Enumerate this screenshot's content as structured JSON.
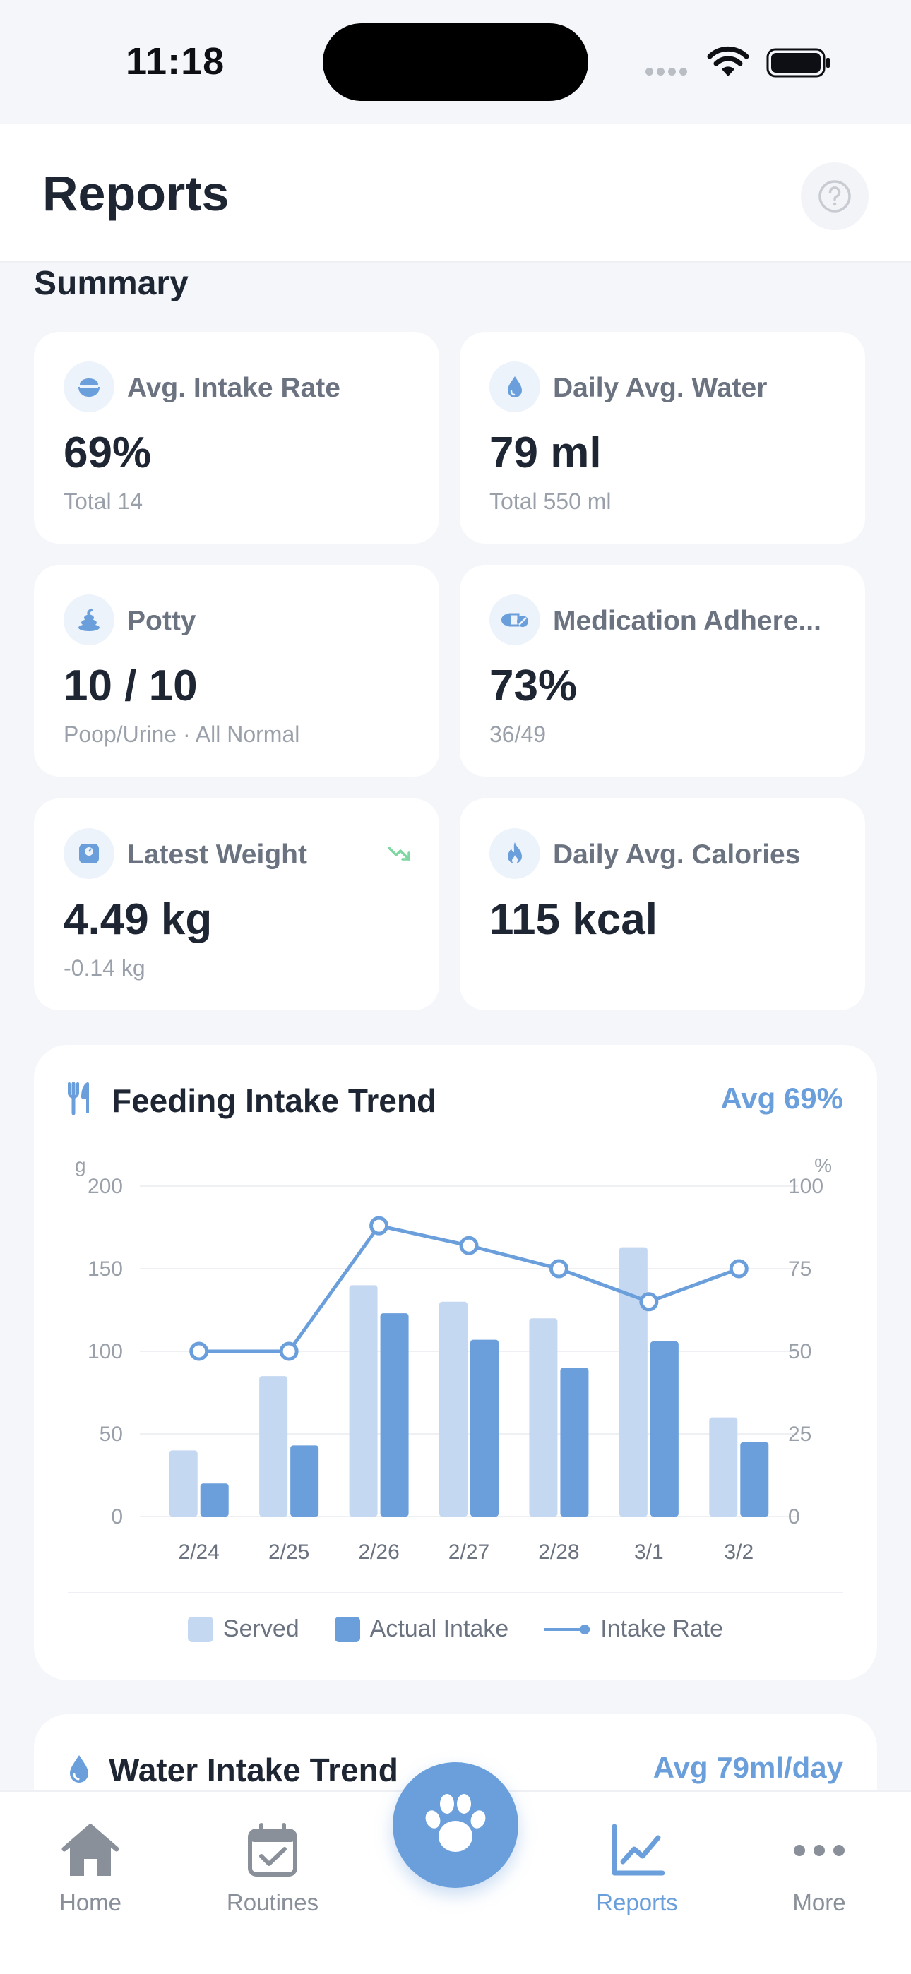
{
  "status_bar": {
    "time": "11:18"
  },
  "header": {
    "title": "Reports"
  },
  "summary": {
    "title": "Summary",
    "cards": [
      {
        "id": "intake",
        "label": "Avg. Intake Rate",
        "value": "69%",
        "sub": "Total 14",
        "icon": "bowl-icon"
      },
      {
        "id": "water",
        "label": "Daily Avg. Water",
        "value": "79 ml",
        "sub": "Total 550 ml",
        "icon": "water-drop-icon"
      },
      {
        "id": "potty",
        "label": "Potty",
        "value": "10 / 10",
        "sub": "Poop/Urine · All Normal",
        "icon": "poop-icon"
      },
      {
        "id": "medication",
        "label": "Medication Adhere...",
        "value": "73%",
        "sub": "36/49",
        "icon": "pill-icon"
      },
      {
        "id": "weight",
        "label": "Latest Weight",
        "value": "4.49 kg",
        "sub": "-0.14 kg",
        "icon": "scale-icon",
        "trend": "trend-down-icon"
      },
      {
        "id": "calories",
        "label": "Daily Avg. Calories",
        "value": "115 kcal",
        "sub": "",
        "icon": "flame-icon"
      }
    ]
  },
  "feeding_chart": {
    "title": "Feeding Intake Trend",
    "avg": "Avg 69%",
    "legend": {
      "served": "Served",
      "actual": "Actual Intake",
      "rate": "Intake Rate"
    },
    "colors": {
      "served": "#C5D8F1",
      "actual": "#6A9FDC",
      "rate": "#6A9FDC"
    }
  },
  "chart_data": {
    "type": "bar",
    "categories": [
      "2/24",
      "2/25",
      "2/26",
      "2/27",
      "2/28",
      "3/1",
      "3/2"
    ],
    "series": [
      {
        "name": "Served",
        "type": "bar",
        "axis": "left",
        "values": [
          40,
          85,
          140,
          130,
          120,
          163,
          60
        ]
      },
      {
        "name": "Actual Intake",
        "type": "bar",
        "axis": "left",
        "values": [
          20,
          43,
          123,
          107,
          90,
          106,
          45
        ]
      },
      {
        "name": "Intake Rate",
        "type": "line",
        "axis": "right",
        "values": [
          50,
          50,
          88,
          82,
          75,
          65,
          75
        ]
      }
    ],
    "ylabel": "g",
    "y2label": "%",
    "ylim": [
      0,
      200
    ],
    "y2lim": [
      0,
      100
    ],
    "yticks": [
      "0",
      "50",
      "100",
      "150",
      "200"
    ],
    "y2ticks": [
      "0",
      "25",
      "50",
      "75",
      "100"
    ],
    "grid": true,
    "legend": "bottom"
  },
  "water_chart": {
    "title": "Water Intake Trend",
    "avg": "Avg 79ml/day"
  },
  "tabbar": {
    "home": "Home",
    "routines": "Routines",
    "reports": "Reports",
    "more": "More"
  }
}
